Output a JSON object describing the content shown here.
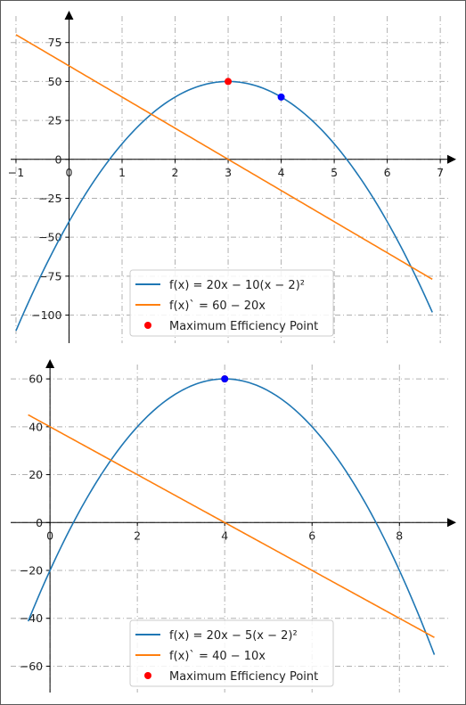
{
  "chart_data": [
    {
      "type": "line",
      "xlim": [
        -1.1,
        7.3
      ],
      "ylim": [
        -118,
        92
      ],
      "grid": true,
      "legend": "bottom-center",
      "x_ticks": [
        -1,
        0,
        1,
        2,
        3,
        4,
        5,
        6,
        7
      ],
      "y_ticks": [
        75,
        50,
        25,
        0,
        -25,
        -50,
        -75,
        -100
      ],
      "series": [
        {
          "name": "f(x) = 20x − 10(x − 2)²",
          "expr": "20x - 10(x-2)^2",
          "x_range": [
            -1,
            6.85
          ],
          "color": "#1f77b4"
        },
        {
          "name": "f(x)` = 60 − 20x",
          "expr": "60 - 20x",
          "x_range": [
            -1,
            6.85
          ],
          "color": "#ff7f0e"
        }
      ],
      "points": [
        {
          "x": 3,
          "y": 50,
          "color": "#ff0000"
        },
        {
          "x": 4,
          "y": 40,
          "color": "#0000ff"
        }
      ],
      "legend_marker_label": "Maximum Efficiency Point"
    },
    {
      "type": "line",
      "xlim": [
        -0.9,
        9.3
      ],
      "ylim": [
        -71,
        66
      ],
      "grid": true,
      "legend": "bottom-center",
      "x_ticks": [
        0,
        2,
        4,
        6,
        8
      ],
      "y_ticks": [
        60,
        40,
        20,
        0,
        -20,
        -40,
        -60
      ],
      "series": [
        {
          "name": "f(x) = 20x − 5(x − 2)²",
          "expr": "20x - 5(x-2)^2",
          "x_range": [
            -0.5,
            8.8
          ],
          "color": "#1f77b4"
        },
        {
          "name": "f(x)` = 40 − 10x",
          "expr": "40 - 10x",
          "x_range": [
            -0.5,
            8.8
          ],
          "color": "#ff7f0e"
        }
      ],
      "points": [
        {
          "x": 4,
          "y": 60,
          "color": "#ff0000"
        },
        {
          "x": 4,
          "y": 60,
          "color": "#0000ff"
        }
      ],
      "legend_marker_label": "Maximum Efficiency Point"
    }
  ]
}
